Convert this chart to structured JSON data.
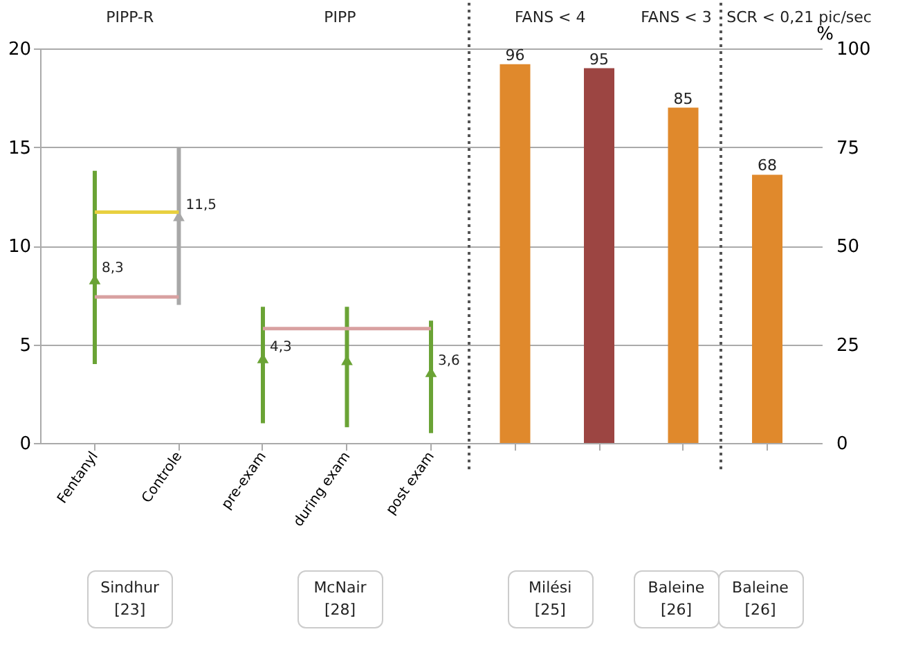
{
  "chart_data": {
    "type": "bar",
    "categories": [
      "Fentanyl",
      "Controle",
      "pre-exam",
      "during exam",
      "post exam",
      null,
      null,
      null,
      null
    ],
    "annotations": [
      "PIPP-R",
      "PIPP",
      "FANS < 4",
      "FANS < 3",
      "SCR < 0,21 pic/sec",
      "Sindhur [23]",
      "McNair [28]",
      "Milési [25]",
      "Baleine [26]",
      "Baleine [26]"
    ],
    "y2label": "%",
    "ylim": [
      0,
      20
    ],
    "yticks": [
      0,
      5,
      10,
      15,
      20
    ],
    "y2lim": [
      0,
      100
    ],
    "y2ticks": [
      0,
      25,
      50,
      75,
      100
    ],
    "grid": "y",
    "series": [
      {
        "type": "scatter",
        "marker": "triangle",
        "colors": [
          "#6aa335",
          "#a8a8a8",
          "#6aa335",
          "#6aa335",
          "#6aa335",
          null,
          null,
          null,
          null
        ],
        "values": [
          8.3,
          11.5,
          4.3,
          4.2,
          3.6,
          null,
          null,
          null,
          null
        ],
        "errors": [
          [
            4,
            13.8
          ],
          [
            7,
            15
          ],
          [
            1,
            6.9
          ],
          [
            0.8,
            6.9
          ],
          [
            0.5,
            6.2
          ],
          null,
          null,
          null,
          null
        ],
        "value_labels": [
          "8,3",
          "11,5",
          "4,3",
          null,
          "3,6",
          null,
          null,
          null,
          null
        ]
      },
      {
        "axis": "y2",
        "data_labels": true,
        "colors": [
          null,
          null,
          null,
          null,
          null,
          "#e0892c",
          "#9c4542",
          "#e0892c",
          "#e0892c"
        ],
        "values": [
          null,
          null,
          null,
          null,
          null,
          96,
          95,
          85,
          68
        ]
      },
      {
        "type": "line",
        "color": "#e8d040",
        "x": [
          "Fentanyl",
          "Controle"
        ],
        "values": [
          11.7,
          11.7
        ]
      },
      {
        "type": "line",
        "color": "#d8a0a0",
        "x": [
          "Fentanyl",
          "Controle"
        ],
        "values": [
          7.4,
          7.4
        ]
      },
      {
        "type": "line",
        "color": "#d8a0a0",
        "x": [
          "pre-exam",
          "post exam"
        ],
        "values": [
          5.8,
          5.8
        ]
      }
    ]
  }
}
